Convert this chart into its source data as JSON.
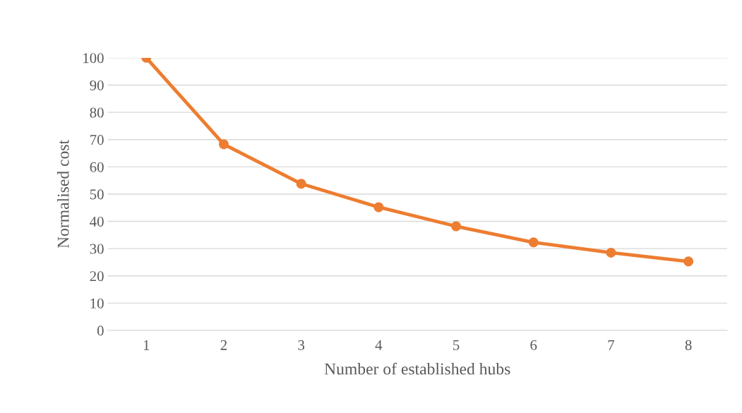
{
  "chart_data": {
    "type": "line",
    "xlabel": "Number of established hubs",
    "ylabel": "Normalised cost",
    "categories": [
      "1",
      "2",
      "3",
      "4",
      "5",
      "6",
      "7",
      "8"
    ],
    "series": [
      {
        "color": "#ed7d31",
        "values": [
          100,
          68.3,
          53.8,
          45.2,
          38.2,
          32.3,
          28.5,
          25.3
        ]
      }
    ],
    "ylim": [
      0,
      100
    ],
    "yticks": [
      0,
      10,
      20,
      30,
      40,
      50,
      60,
      70,
      80,
      90,
      100
    ],
    "grid": "y",
    "legend": false,
    "marker": "circle",
    "line_style": "solid"
  }
}
